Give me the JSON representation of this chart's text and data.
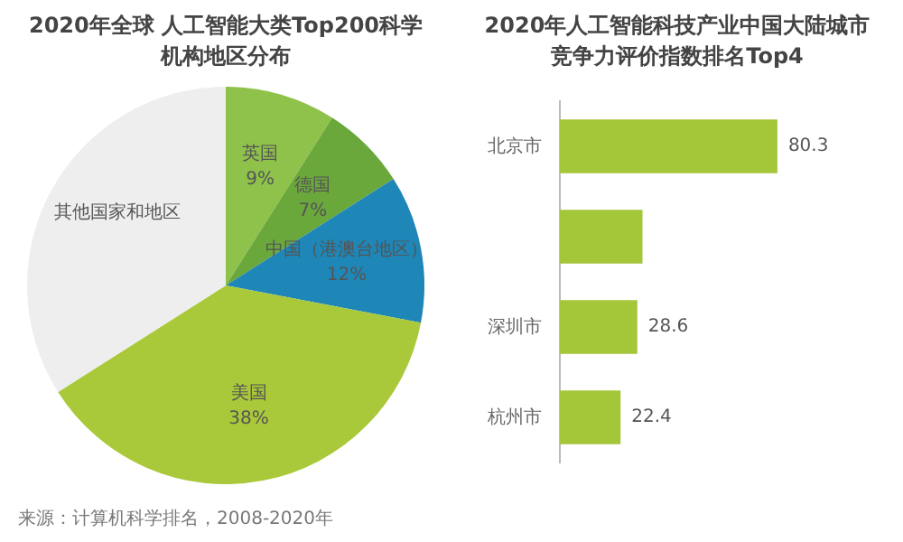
{
  "chart_data": [
    {
      "type": "pie",
      "title": "2020年全球 人工智能大类Top200科学机构地区分布",
      "categories": [
        "英国",
        "德国",
        "中国（港澳台地区）",
        "美国",
        "其他国家和地区"
      ],
      "values": [
        9,
        7,
        12,
        38,
        34
      ],
      "colors": [
        "#8fc24a",
        "#6aa83c",
        "#1f86b8",
        "#a9c93a",
        "#eeeeee"
      ],
      "value_labels": [
        "9%",
        "7%",
        "12%",
        "38%",
        null
      ],
      "annotations": [
        "来源：计算机科学排名，2008-2020年"
      ]
    },
    {
      "type": "bar",
      "orientation": "horizontal",
      "title": "2020年人工智能科技产业中国大陆城市竞争力评价指数排名Top4",
      "categories": [
        "北京市",
        null,
        "深圳市",
        "杭州市"
      ],
      "values": [
        80.3,
        30.5,
        28.6,
        22.4
      ],
      "color": "#a4c639",
      "value_labels": [
        "80.3",
        null,
        "28.6",
        "22.4"
      ]
    }
  ]
}
